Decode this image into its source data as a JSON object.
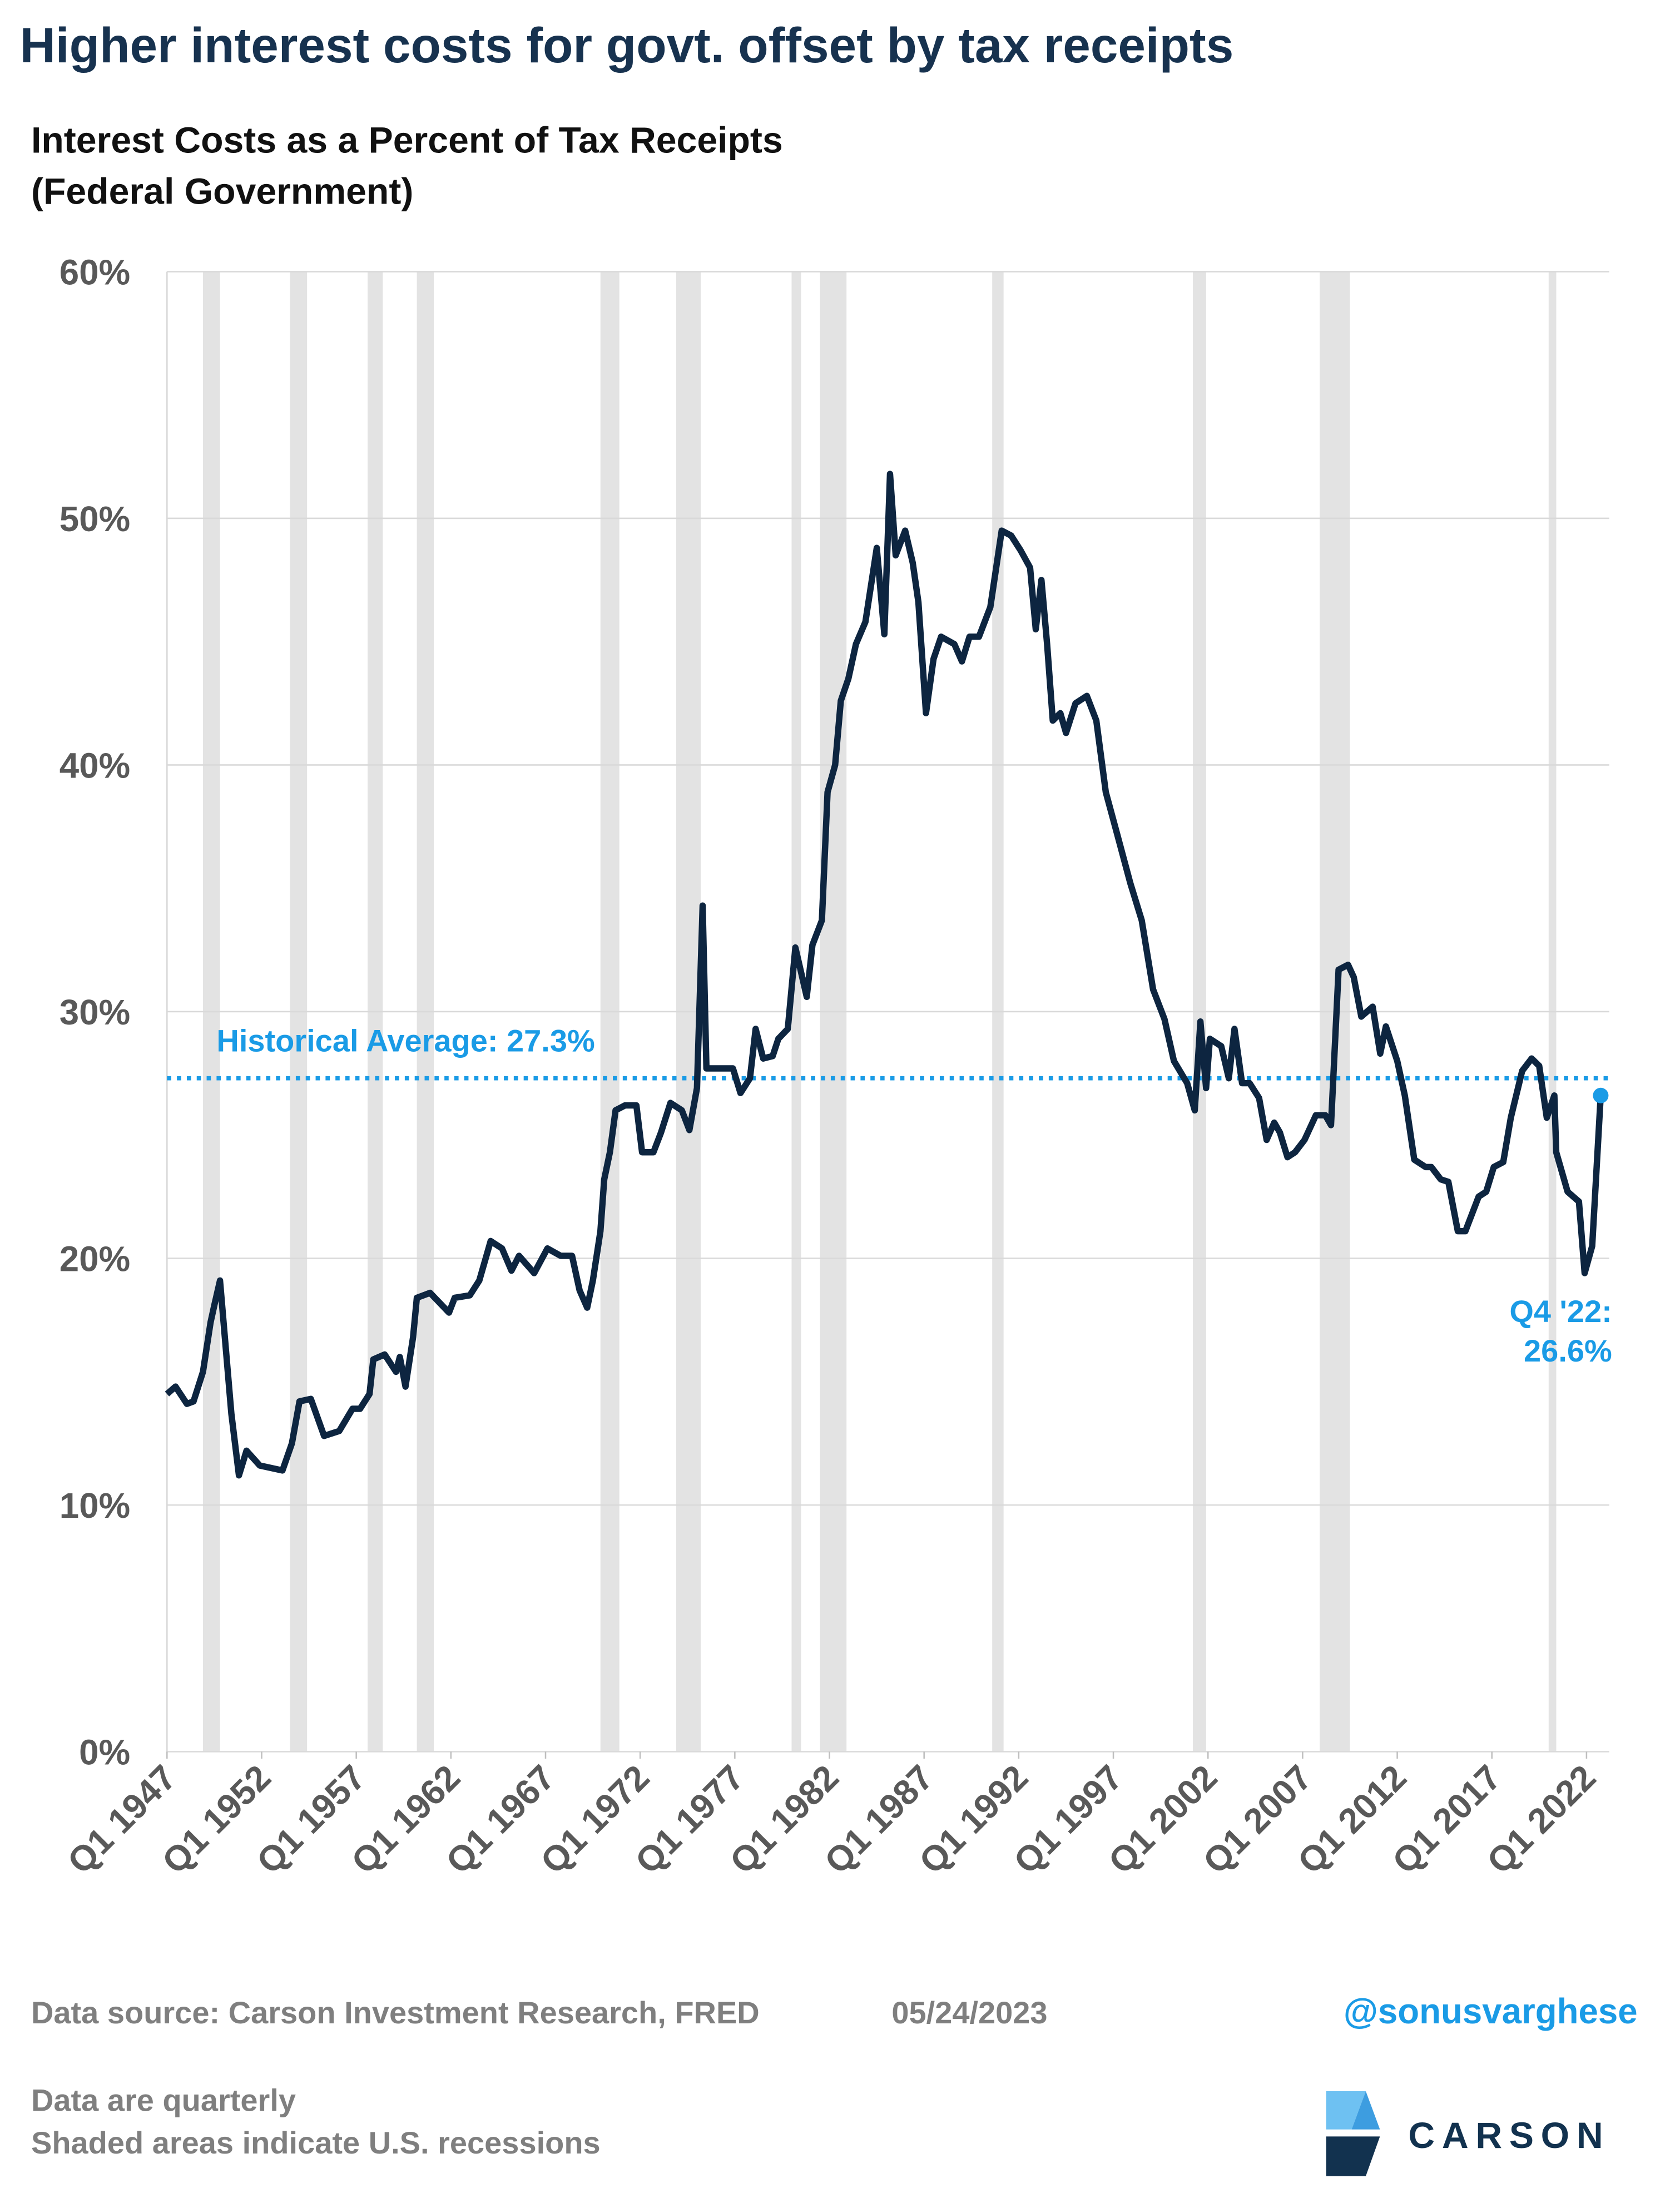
{
  "chart_data": {
    "type": "line",
    "title": "Higher interest costs for govt. offset by tax receipts",
    "subtitle": [
      "Interest Costs as a Percent of Tax Receipts",
      "(Federal Government)"
    ],
    "x": [
      1947.0,
      1947.45,
      1948.05,
      1948.4,
      1948.9,
      1949.3,
      1949.5,
      1949.8,
      1950.4,
      1950.8,
      1951.2,
      1951.9,
      1953.1,
      1953.6,
      1954.0,
      1954.6,
      1955.3,
      1956.1,
      1956.8,
      1957.2,
      1957.7,
      1957.9,
      1958.5,
      1959.1,
      1959.3,
      1959.6,
      1960.0,
      1960.2,
      1960.9,
      1961.4,
      1961.9,
      1962.2,
      1963.0,
      1963.5,
      1964.1,
      1964.7,
      1965.2,
      1965.6,
      1966.4,
      1967.1,
      1967.8,
      1968.4,
      1968.8,
      1969.2,
      1969.5,
      1969.9,
      1970.1,
      1970.4,
      1970.7,
      1971.2,
      1971.8,
      1972.1,
      1972.7,
      1973.1,
      1973.6,
      1974.2,
      1974.6,
      1975.0,
      1975.3,
      1975.5,
      1976.3,
      1976.9,
      1977.3,
      1977.8,
      1978.1,
      1978.5,
      1979.0,
      1979.3,
      1979.8,
      1980.2,
      1980.8,
      1981.1,
      1981.6,
      1981.9,
      1982.3,
      1982.6,
      1983.0,
      1983.4,
      1983.9,
      1984.5,
      1984.9,
      1985.2,
      1985.5,
      1986.0,
      1986.4,
      1986.7,
      1987.1,
      1987.5,
      1987.9,
      1988.6,
      1989.0,
      1989.4,
      1989.9,
      1990.5,
      1991.1,
      1991.6,
      1992.1,
      1992.6,
      1992.9,
      1993.2,
      1993.5,
      1993.8,
      1994.2,
      1994.5,
      1995.0,
      1995.6,
      1996.1,
      1996.6,
      1997.2,
      1997.9,
      1998.5,
      1999.1,
      1999.7,
      2000.2,
      2000.9,
      2001.3,
      2001.6,
      2001.9,
      2002.1,
      2002.7,
      2003.1,
      2003.4,
      2003.8,
      2004.2,
      2004.7,
      2005.1,
      2005.5,
      2005.8,
      2006.2,
      2006.6,
      2007.1,
      2007.7,
      2008.2,
      2008.5,
      2008.9,
      2009.4,
      2009.7,
      2010.1,
      2010.7,
      2011.1,
      2011.4,
      2012.0,
      2012.4,
      2012.9,
      2013.5,
      2013.8,
      2014.3,
      2014.7,
      2015.2,
      2015.6,
      2015.9,
      2016.3,
      2016.7,
      2017.1,
      2017.6,
      2018.0,
      2018.6,
      2019.1,
      2019.5,
      2019.9,
      2020.3,
      2020.4,
      2021.0,
      2021.6,
      2021.9,
      2022.3,
      2022.75
    ],
    "series": [
      {
        "name": "Interest Costs as a Percent of Tax Receipts",
        "color": "#0d2540",
        "values": [
          14.5,
          14.8,
          14.1,
          14.2,
          15.4,
          17.4,
          18.1,
          19.1,
          13.7,
          11.2,
          12.2,
          11.6,
          11.4,
          12.5,
          14.2,
          14.3,
          12.8,
          13.0,
          13.9,
          13.9,
          14.5,
          15.9,
          16.1,
          15.4,
          16.0,
          14.8,
          16.8,
          18.4,
          18.6,
          18.2,
          17.8,
          18.4,
          18.5,
          19.1,
          20.7,
          20.4,
          19.5,
          20.1,
          19.4,
          20.4,
          20.1,
          20.1,
          18.7,
          18.0,
          19.1,
          21.1,
          23.2,
          24.3,
          26.0,
          26.2,
          26.2,
          24.3,
          24.3,
          25.1,
          26.3,
          26.0,
          25.2,
          26.9,
          34.3,
          27.7,
          27.7,
          27.7,
          26.7,
          27.3,
          29.3,
          28.1,
          28.2,
          28.9,
          29.3,
          32.6,
          30.6,
          32.7,
          33.7,
          38.9,
          40.0,
          42.6,
          43.5,
          44.9,
          45.8,
          48.8,
          45.3,
          51.8,
          48.5,
          49.5,
          48.2,
          46.6,
          42.1,
          44.3,
          45.2,
          44.9,
          44.2,
          45.2,
          45.2,
          46.4,
          49.5,
          49.3,
          48.7,
          48.0,
          45.5,
          47.5,
          44.9,
          41.8,
          42.1,
          41.3,
          42.5,
          42.8,
          41.8,
          38.9,
          37.2,
          35.2,
          33.7,
          30.9,
          29.7,
          28.0,
          27.1,
          26.0,
          29.6,
          26.9,
          28.9,
          28.6,
          27.3,
          29.3,
          27.1,
          27.1,
          26.5,
          24.8,
          25.5,
          25.1,
          24.1,
          24.3,
          24.8,
          25.8,
          25.8,
          25.4,
          31.7,
          31.9,
          31.4,
          29.8,
          30.2,
          28.3,
          29.4,
          28.0,
          26.6,
          24.0,
          23.7,
          23.7,
          23.2,
          23.1,
          21.1,
          21.1,
          21.7,
          22.5,
          22.7,
          23.7,
          23.9,
          25.7,
          27.6,
          28.1,
          27.8,
          25.7,
          26.6,
          24.3,
          22.7,
          22.3,
          19.4,
          20.5,
          26.6
        ]
      }
    ],
    "recessions": [
      [
        1948.9,
        1949.8
      ],
      [
        1953.5,
        1954.4
      ],
      [
        1957.6,
        1958.4
      ],
      [
        1960.2,
        1961.1
      ],
      [
        1969.9,
        1970.9
      ],
      [
        1973.9,
        1975.2
      ],
      [
        1980.0,
        1980.5
      ],
      [
        1981.5,
        1982.9
      ],
      [
        1990.6,
        1991.2
      ],
      [
        2001.2,
        2001.9
      ],
      [
        2007.9,
        2009.5
      ],
      [
        2020.0,
        2020.4
      ]
    ],
    "average": 27.3,
    "average_label": "Historical Average: 27.3%",
    "average_color": "#1a9be6",
    "end_label": [
      "Q4 '22:",
      "26.6%"
    ],
    "xlim": [
      1947,
      2023.2
    ],
    "xticks": [
      {
        "value": 1947,
        "label": "Q1 1947"
      },
      {
        "value": 1952,
        "label": "Q1 1952"
      },
      {
        "value": 1957,
        "label": "Q1 1957"
      },
      {
        "value": 1962,
        "label": "Q1 1962"
      },
      {
        "value": 1967,
        "label": "Q1 1967"
      },
      {
        "value": 1972,
        "label": "Q1 1972"
      },
      {
        "value": 1977,
        "label": "Q1 1977"
      },
      {
        "value": 1982,
        "label": "Q1 1982"
      },
      {
        "value": 1987,
        "label": "Q1 1987"
      },
      {
        "value": 1992,
        "label": "Q1 1992"
      },
      {
        "value": 1997,
        "label": "Q1 1997"
      },
      {
        "value": 2002,
        "label": "Q1 2002"
      },
      {
        "value": 2007,
        "label": "Q1 2007"
      },
      {
        "value": 2012,
        "label": "Q1 2012"
      },
      {
        "value": 2017,
        "label": "Q1 2017"
      },
      {
        "value": 2022,
        "label": "Q1 2022"
      }
    ],
    "ylim": [
      0,
      60
    ],
    "yticks": [
      {
        "value": 0,
        "label": "0%"
      },
      {
        "value": 10,
        "label": "10%"
      },
      {
        "value": 20,
        "label": "20%"
      },
      {
        "value": 30,
        "label": "30%"
      },
      {
        "value": 40,
        "label": "40%"
      },
      {
        "value": 50,
        "label": "50%"
      },
      {
        "value": 60,
        "label": "60%"
      }
    ],
    "grid": true,
    "source": "Data source: Carson Investment Research, FRED",
    "date": "05/24/2023",
    "handle": "@sonusvarghese",
    "notes": [
      "Data are quarterly",
      "Shaded areas indicate U.S. recessions"
    ],
    "logo": "CARSON"
  }
}
